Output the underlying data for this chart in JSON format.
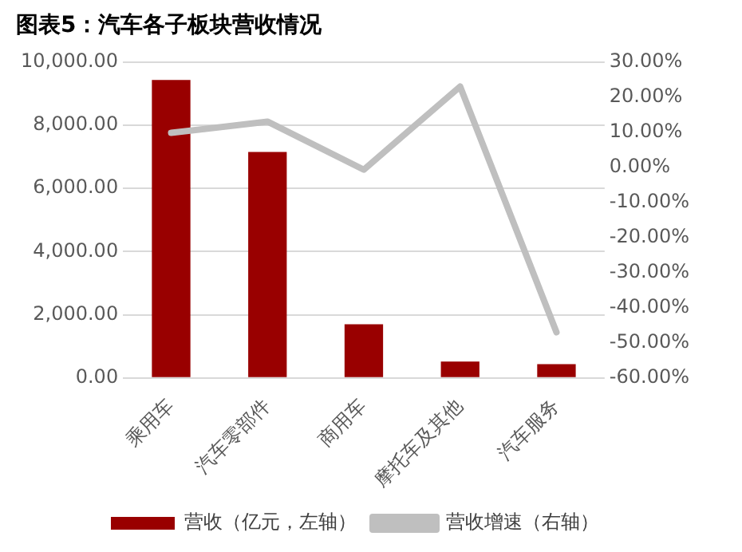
{
  "chart_data": {
    "type": "bar",
    "title": "图表5：汽车各子板块营收情况",
    "categories": [
      "乘用车",
      "汽车零部件",
      "商用车",
      "摩托车及其他",
      "汽车服务"
    ],
    "series": [
      {
        "name": "营收（亿元，左轴）",
        "color": "#990000",
        "values": [
          9430,
          7150,
          1700,
          520,
          440
        ]
      },
      {
        "name": "营收增速（右轴）",
        "type": "line",
        "axis": "y2",
        "color": "#bfbfbf",
        "values": [
          9.8,
          13,
          -0.7,
          23,
          -47
        ]
      }
    ],
    "ylim": [
      0,
      10000
    ],
    "yticks": [
      {
        "value": 0,
        "label": "0.00"
      },
      {
        "value": 2000,
        "label": "2,000.00"
      },
      {
        "value": 4000,
        "label": "4,000.00"
      },
      {
        "value": 6000,
        "label": "6,000.00"
      },
      {
        "value": 8000,
        "label": "8,000.00"
      },
      {
        "value": 10000,
        "label": "10,000.00"
      }
    ],
    "y2lim": [
      -60,
      30
    ],
    "y2ticks": [
      {
        "value": -60,
        "label": "-60.00%"
      },
      {
        "value": -50,
        "label": "-50.00%"
      },
      {
        "value": -40,
        "label": "-40.00%"
      },
      {
        "value": -30,
        "label": "-30.00%"
      },
      {
        "value": -20,
        "label": "-20.00%"
      },
      {
        "value": -10,
        "label": "-10.00%"
      },
      {
        "value": 0,
        "label": "0.00%"
      },
      {
        "value": 10,
        "label": "10.00%"
      },
      {
        "value": 20,
        "label": "20.00%"
      },
      {
        "value": 30,
        "label": "30.00%"
      }
    ],
    "grid": "y",
    "legend": "bottom",
    "marker": "none"
  }
}
